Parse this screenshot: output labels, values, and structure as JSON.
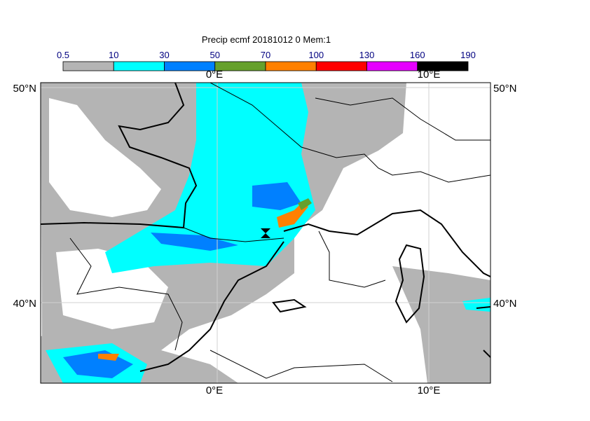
{
  "title": "Precip ecmf 20181012 0 Mem:1",
  "colorbar": {
    "levels": [
      0.5,
      10,
      30,
      50,
      70,
      100,
      130,
      160,
      190
    ],
    "colors": [
      "#b4b4b4",
      "#00ffff",
      "#0080ff",
      "#66a02c",
      "#ff8000",
      "#ff0000",
      "#e600ff",
      "#000000"
    ],
    "label_color": "#000080"
  },
  "lon_labels": [
    "0°E",
    "10°E"
  ],
  "lat_labels": [
    "50°N",
    "40°N"
  ]
}
